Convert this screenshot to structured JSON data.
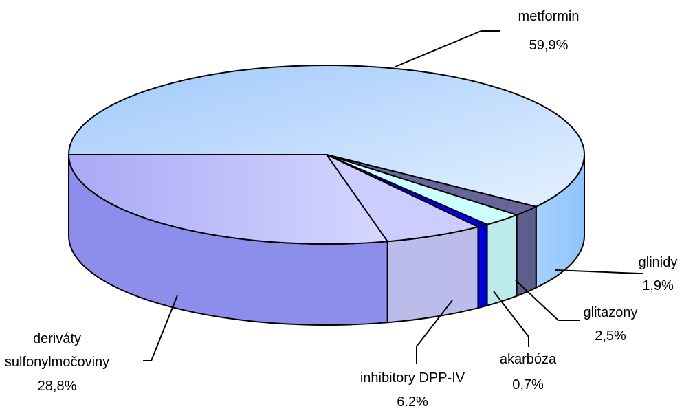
{
  "chart_data": {
    "type": "pie",
    "style": "3d",
    "slices": [
      {
        "label": "metformin",
        "value_label": "59,9%",
        "value": 59.9,
        "color": "#a8cffd"
      },
      {
        "label": "glinidy",
        "value_label": "1,9%",
        "value": 1.9,
        "color": "#666699"
      },
      {
        "label": "glitazony",
        "value_label": "2,5%",
        "value": 2.5,
        "color": "#ccffff"
      },
      {
        "label": "akarbóza",
        "value_label": "0,7%",
        "value": 0.7,
        "color": "#0000ee"
      },
      {
        "label": "inhibitory DPP-IV",
        "value_label": "6.2%",
        "value": 6.2,
        "color": "#ccccff"
      },
      {
        "label": "deriváty sulfonylmočoviny",
        "value_label": "28,8%",
        "value": 28.8,
        "color": "#9999ff"
      }
    ]
  }
}
